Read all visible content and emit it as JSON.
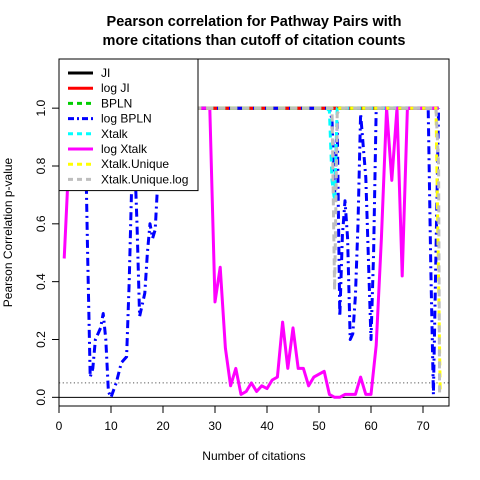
{
  "chart_data": {
    "type": "line",
    "title_lines": [
      "Pearson correlation for Pathway Pairs with",
      "more citations than cutoff of citation counts"
    ],
    "xlabel": "Number of citations",
    "ylabel": "Pearson Correlation p-value",
    "xlim": [
      0,
      75
    ],
    "ylim": [
      -0.03,
      1.17
    ],
    "xticks": [
      0,
      10,
      20,
      30,
      40,
      50,
      60,
      70
    ],
    "yticks": [
      0.0,
      0.2,
      0.4,
      0.6,
      0.8,
      1.0
    ],
    "ytick_labels": [
      "0.0",
      "0.2",
      "0.4",
      "0.6",
      "0.8",
      "1.0"
    ],
    "reference_line": {
      "y": 0.05,
      "style": "dotted",
      "color": "#555555"
    },
    "zero_line": {
      "y": 0.0,
      "color": "#000000"
    },
    "legend_position": "top-left",
    "series": [
      {
        "name": "JI",
        "color": "#000000",
        "dash": "solid",
        "points": [
          [
            26,
            1.0
          ],
          [
            73,
            1.0
          ]
        ]
      },
      {
        "name": "log JI",
        "color": "#ff0000",
        "dash": "solid",
        "points": [
          [
            26,
            1.0
          ],
          [
            73,
            1.0
          ]
        ]
      },
      {
        "name": "BPLN",
        "color": "#00cd00",
        "dash": "dashed",
        "points": [
          [
            26,
            1.0
          ],
          [
            73,
            1.0
          ]
        ]
      },
      {
        "name": "log BPLN",
        "color": "#0000ff",
        "dash": "dashdot",
        "points": [
          [
            5,
            0.98
          ],
          [
            5.5,
            0.5
          ],
          [
            6,
            0.07
          ],
          [
            6.5,
            0.1
          ],
          [
            7,
            0.2
          ],
          [
            7.5,
            0.22
          ],
          [
            8,
            0.24
          ],
          [
            8.5,
            0.29
          ],
          [
            9,
            0.2
          ],
          [
            9.5,
            0.02
          ],
          [
            10,
            0.0
          ],
          [
            11,
            0.05
          ],
          [
            12,
            0.12
          ],
          [
            13,
            0.14
          ],
          [
            13.5,
            0.4
          ],
          [
            14,
            0.75
          ],
          [
            14.5,
            0.85
          ],
          [
            15,
            0.6
          ],
          [
            15.5,
            0.28
          ],
          [
            16,
            0.32
          ],
          [
            16.5,
            0.36
          ],
          [
            17,
            0.5
          ],
          [
            17.5,
            0.6
          ],
          [
            18,
            0.55
          ],
          [
            18.5,
            0.58
          ],
          [
            19,
            0.75
          ],
          [
            20,
            0.9
          ],
          [
            21,
            1.0
          ],
          [
            52,
            1.0
          ],
          [
            52.5,
            0.96
          ],
          [
            53,
            0.7
          ],
          [
            53.5,
            0.95
          ],
          [
            54,
            0.28
          ],
          [
            54.5,
            0.56
          ],
          [
            55,
            0.68
          ],
          [
            55.5,
            0.55
          ],
          [
            56,
            0.2
          ],
          [
            56.5,
            0.22
          ],
          [
            57,
            0.35
          ],
          [
            57.5,
            0.6
          ],
          [
            58,
            0.98
          ],
          [
            59,
            0.76
          ],
          [
            60,
            0.2
          ],
          [
            60.5,
            0.5
          ],
          [
            61,
            1.0
          ],
          [
            71,
            1.0
          ],
          [
            71.5,
            0.45
          ],
          [
            72,
            0.01
          ],
          [
            73,
            1.0
          ]
        ]
      },
      {
        "name": "Xtalk",
        "color": "#00ffff",
        "dash": "dashed",
        "points": [
          [
            26,
            1.0
          ],
          [
            51.5,
            1.0
          ],
          [
            52,
            0.99
          ],
          [
            52.5,
            0.75
          ],
          [
            53,
            0.68
          ],
          [
            53.5,
            1.0
          ],
          [
            73,
            1.0
          ]
        ]
      },
      {
        "name": "log Xtalk",
        "color": "#ff00ff",
        "dash": "solid",
        "points": [
          [
            1,
            0.48
          ],
          [
            2,
            0.86
          ],
          [
            26,
            1.0
          ],
          [
            29,
            1.0
          ],
          [
            30,
            0.33
          ],
          [
            31,
            0.45
          ],
          [
            32,
            0.17
          ],
          [
            33,
            0.04
          ],
          [
            34,
            0.1
          ],
          [
            35,
            0.01
          ],
          [
            36,
            0.02
          ],
          [
            37,
            0.05
          ],
          [
            38,
            0.02
          ],
          [
            39,
            0.04
          ],
          [
            40,
            0.03
          ],
          [
            41,
            0.06
          ],
          [
            42,
            0.07
          ],
          [
            43,
            0.26
          ],
          [
            44,
            0.1
          ],
          [
            45,
            0.24
          ],
          [
            46,
            0.1
          ],
          [
            47,
            0.1
          ],
          [
            48,
            0.04
          ],
          [
            49,
            0.07
          ],
          [
            50,
            0.08
          ],
          [
            51,
            0.09
          ],
          [
            52,
            0.01
          ],
          [
            53,
            0.0
          ],
          [
            54,
            0.0
          ],
          [
            55,
            0.01
          ],
          [
            56,
            0.01
          ],
          [
            57,
            0.01
          ],
          [
            58,
            0.07
          ],
          [
            59,
            0.01
          ],
          [
            60,
            0.01
          ],
          [
            61,
            0.18
          ],
          [
            62,
            0.55
          ],
          [
            63,
            1.0
          ],
          [
            64,
            0.75
          ],
          [
            65,
            1.0
          ],
          [
            66,
            0.42
          ],
          [
            67,
            1.0
          ],
          [
            73,
            1.0
          ]
        ]
      },
      {
        "name": "Xtalk.Unique",
        "color": "#ffff00",
        "dash": "dashed",
        "points": [
          [
            26,
            1.0
          ],
          [
            72.5,
            1.0
          ],
          [
            73,
            0.4
          ],
          [
            73.3,
            0.02
          ]
        ]
      },
      {
        "name": "Xtalk.Unique.log",
        "color": "#bebebe",
        "dash": "dashed",
        "points": [
          [
            26,
            1.0
          ],
          [
            52.5,
            1.0
          ],
          [
            53,
            0.37
          ],
          [
            53.5,
            0.98
          ],
          [
            54,
            1.0
          ],
          [
            72.5,
            1.0
          ],
          [
            73,
            0.8
          ],
          [
            73.2,
            0.01
          ]
        ]
      }
    ]
  }
}
